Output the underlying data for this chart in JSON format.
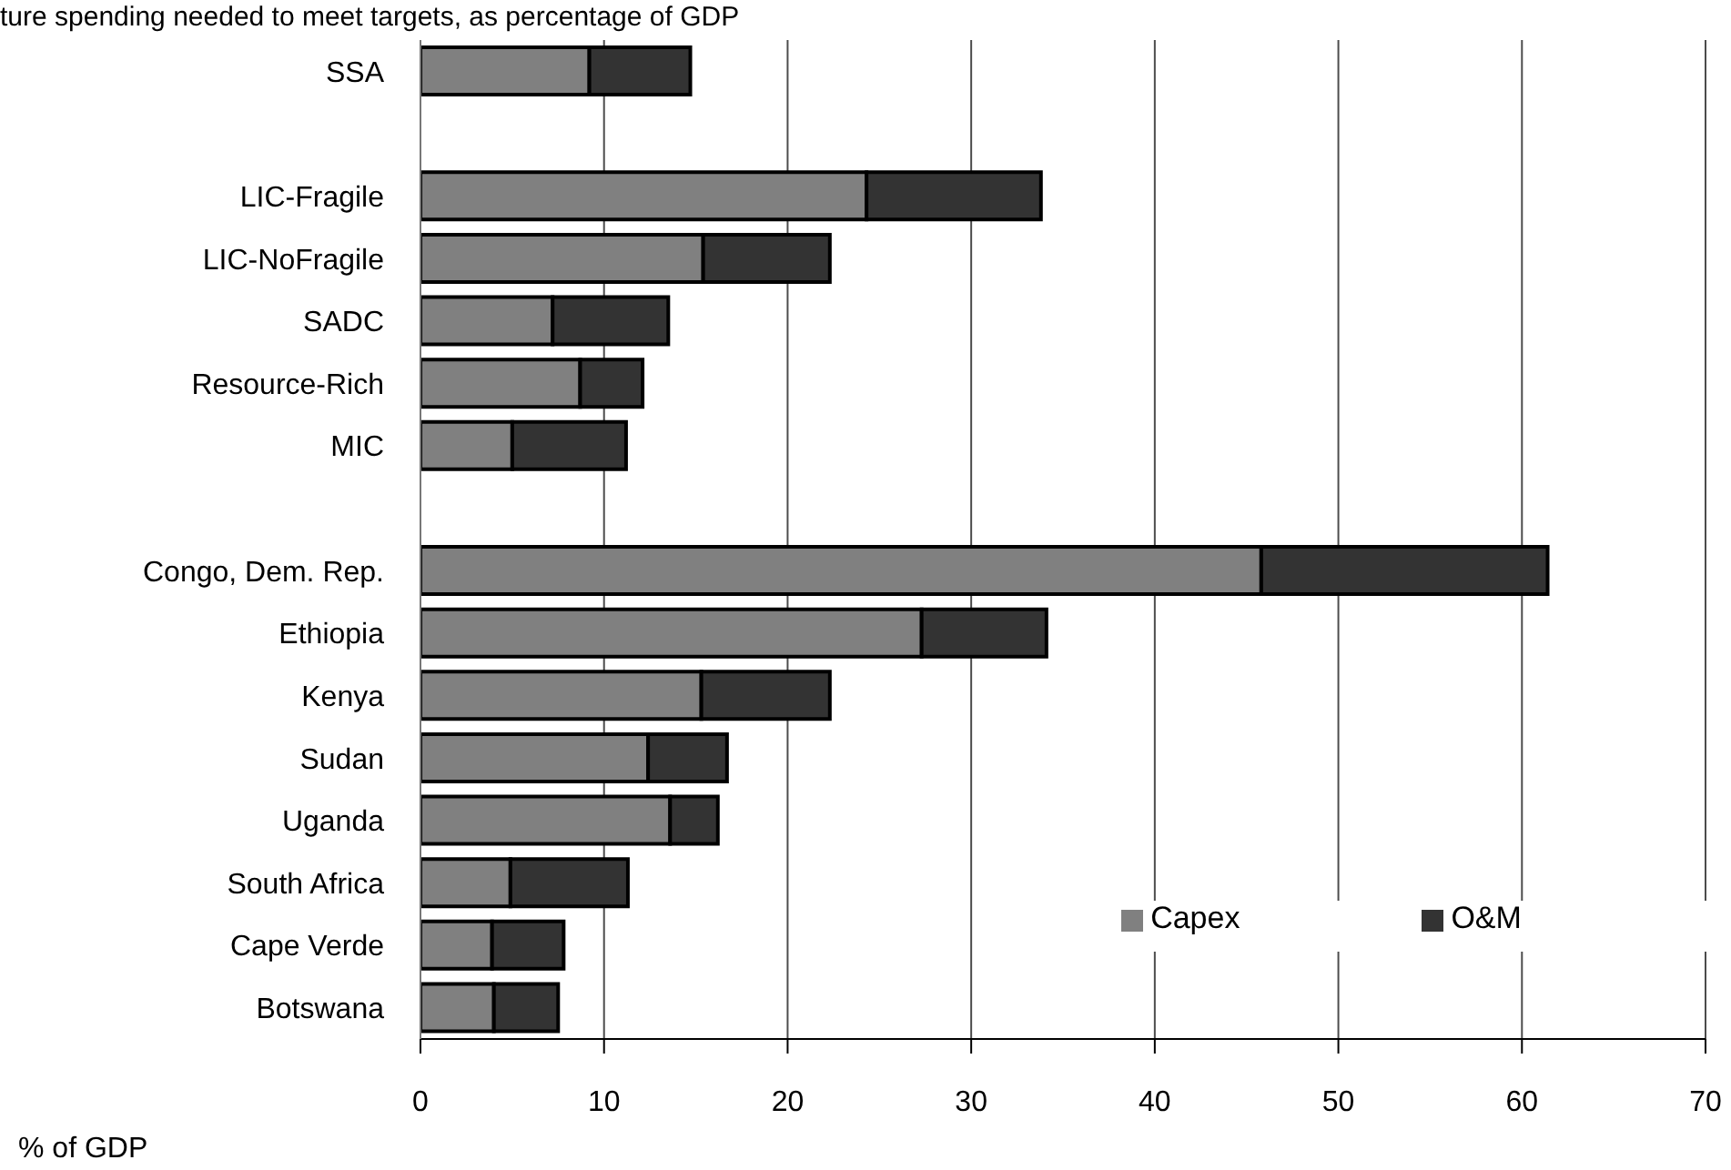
{
  "chart_data": {
    "type": "bar",
    "orientation": "horizontal",
    "stacked": true,
    "title": "ture spending needed to meet targets, as percentage of GDP",
    "xlabel": "% of GDP",
    "categories": [
      "SSA",
      null,
      "LIC-Fragile",
      "LIC-NoFragile",
      "SADC",
      "Resource-Rich",
      "MIC",
      null,
      "Congo, Dem. Rep.",
      "Ethiopia",
      "Kenya",
      "Sudan",
      "Uganda",
      "South Africa",
      "Cape Verde",
      "Botswana"
    ],
    "series": [
      {
        "name": "Capex",
        "color": "#808080",
        "values": [
          9.2,
          null,
          24.3,
          15.4,
          7.2,
          8.7,
          5.0,
          null,
          45.8,
          27.3,
          15.3,
          12.4,
          13.6,
          4.9,
          3.9,
          4.0
        ]
      },
      {
        "name": "O&M",
        "color": "#333333",
        "values": [
          5.5,
          null,
          9.5,
          6.9,
          6.3,
          3.4,
          6.2,
          null,
          15.6,
          6.8,
          7.0,
          4.3,
          2.6,
          6.4,
          3.9,
          3.5
        ]
      }
    ],
    "xlim": [
      0,
      70
    ],
    "xticks": [
      0,
      10,
      20,
      30,
      40,
      50,
      60,
      70
    ],
    "grid": "x",
    "legend": "bottom right"
  }
}
